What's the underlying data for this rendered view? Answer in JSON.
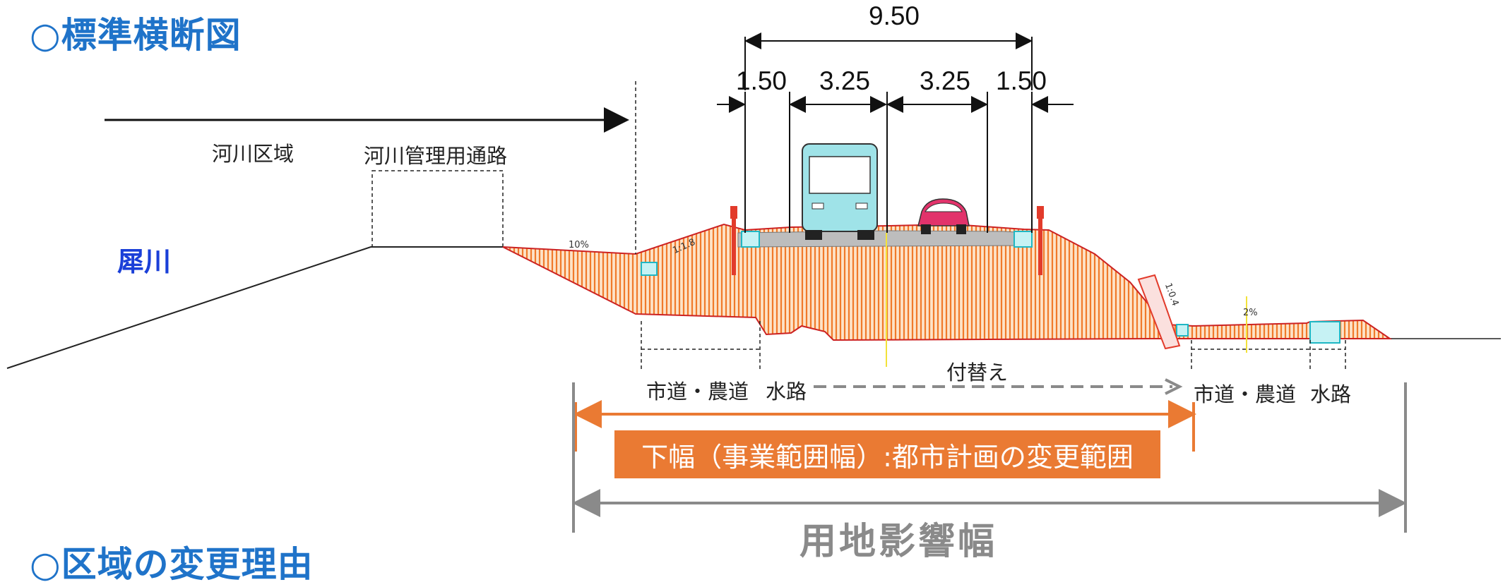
{
  "title": "○標準横断図",
  "next_title": "○区域の変更理由",
  "dimensions": {
    "total": "9.50",
    "left_shoulder": "1.50",
    "left_lane": "3.25",
    "right_lane": "3.25",
    "right_shoulder": "1.50"
  },
  "labels": {
    "river_area": "河川区域",
    "river_road": "河川管理用通路",
    "river_name": "犀川",
    "city_farm_road_left": "市道・農道",
    "waterway_left": "水路",
    "replacement": "付替え",
    "city_farm_road_right": "市道・農道",
    "waterway_right": "水路",
    "bottom_width_banner": "下幅（事業範囲幅）:都市計画の変更範囲",
    "land_impact_width": "用地影響幅"
  },
  "slopes": {
    "left_grade": "10%",
    "left_slope": "1:1.8",
    "right_slope": "1:0.4",
    "right_grade": "2%"
  },
  "colors": {
    "title": "#1f73c9",
    "river_name": "#1a3fd8",
    "fill": "#f07a2a",
    "banner": "#ea7a33",
    "impact_arrow": "#8a8a8a",
    "bus": "#9fe3e8",
    "car": "#e2336b"
  }
}
